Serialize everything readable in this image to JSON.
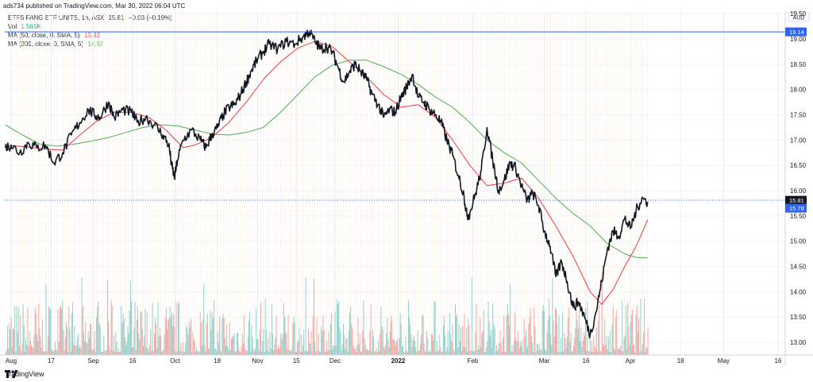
{
  "header": {
    "publish_line": "ads734 published on TradingView.com, Mar 30, 2022 06:04 UTC"
  },
  "legend": {
    "symbol": "ETFS FANG ETF UNITS, 1h, ASX",
    "last": "15.81",
    "change": "−0.03 (−0.19%)",
    "vol_label": "Vol",
    "vol_value": "1.565K",
    "ma50_label": "MA (50, close, 0, SMA, 5)",
    "ma50_value": "15.42",
    "ma200_label": "MA (200, close, 0, SMA, 5)",
    "ma200_value": "14.67"
  },
  "footer": {
    "brand": "TradingView"
  },
  "colors": {
    "price_line": "#131722",
    "ma50": "#f23645",
    "ma200": "#4caf50",
    "level_line": "#2962ff",
    "volume_up": "#26a69a",
    "volume_down": "#ef5350"
  },
  "chart_data": {
    "type": "line",
    "currency": "AUD",
    "ylim": [
      12.75,
      19.55
    ],
    "y_ticks": [
      "19.50",
      "19.00",
      "18.50",
      "18.00",
      "17.50",
      "17.00",
      "16.50",
      "16.00",
      "15.50",
      "15.00",
      "14.50",
      "14.00",
      "13.50",
      "13.00"
    ],
    "x_ticks": [
      {
        "label": "Aug",
        "t": 0.0
      },
      {
        "label": "17",
        "t": 14.0
      },
      {
        "label": "Sep",
        "t": 28.7
      },
      {
        "label": "16",
        "t": 42.4
      },
      {
        "label": "Oct",
        "t": 57.2
      },
      {
        "label": "18",
        "t": 71.9
      },
      {
        "label": "Nov",
        "t": 86.0
      },
      {
        "label": "15",
        "t": 99.5
      },
      {
        "label": "Dec",
        "t": 113.0
      },
      {
        "label": "2022",
        "t": 135.0
      },
      {
        "label": "Feb",
        "t": 161.0
      },
      {
        "label": "Mar",
        "t": 186.0
      },
      {
        "label": "16",
        "t": 200.5
      },
      {
        "label": "Apr",
        "t": 216.0
      },
      {
        "label": "18",
        "t": 233.5
      },
      {
        "label": "May",
        "t": 248.5
      },
      {
        "label": "16",
        "t": 267.5
      }
    ],
    "t_range": [
      -2.2,
      270
    ],
    "horizontal_levels": [
      {
        "value": 19.14,
        "label": "19.14",
        "style": "solid"
      },
      {
        "value": 15.81,
        "label": "15.81",
        "style": "dotted",
        "tag_color": "#131722"
      },
      {
        "value": 15.78,
        "label": "15.78",
        "style": "none",
        "tag_color": "#2962ff"
      }
    ],
    "series": [
      {
        "key": "price",
        "points": [
          [
            -2,
            16.85
          ],
          [
            0,
            16.9
          ],
          [
            3,
            16.75
          ],
          [
            6,
            16.95
          ],
          [
            9,
            16.85
          ],
          [
            12,
            16.9
          ],
          [
            15,
            16.55
          ],
          [
            18,
            16.75
          ],
          [
            21,
            17.1
          ],
          [
            24,
            17.35
          ],
          [
            27,
            17.6
          ],
          [
            29,
            17.5
          ],
          [
            31,
            17.45
          ],
          [
            34,
            17.75
          ],
          [
            36,
            17.45
          ],
          [
            39,
            17.6
          ],
          [
            42,
            17.55
          ],
          [
            44,
            17.35
          ],
          [
            47,
            17.45
          ],
          [
            50,
            17.3
          ],
          [
            53,
            17.1
          ],
          [
            55,
            16.9
          ],
          [
            56,
            16.5
          ],
          [
            57,
            16.25
          ],
          [
            58,
            16.6
          ],
          [
            60,
            17.0
          ],
          [
            63,
            17.2
          ],
          [
            66,
            17.0
          ],
          [
            68,
            16.85
          ],
          [
            70,
            17.1
          ],
          [
            72,
            17.25
          ],
          [
            74,
            17.5
          ],
          [
            76,
            17.65
          ],
          [
            78,
            17.7
          ],
          [
            80,
            17.9
          ],
          [
            82,
            18.15
          ],
          [
            84,
            18.4
          ],
          [
            86,
            18.6
          ],
          [
            88,
            18.75
          ],
          [
            90,
            18.9
          ],
          [
            93,
            18.8
          ],
          [
            96,
            18.95
          ],
          [
            99,
            18.9
          ],
          [
            102,
            19.05
          ],
          [
            104,
            19.15
          ],
          [
            106,
            18.95
          ],
          [
            108,
            18.8
          ],
          [
            110,
            18.85
          ],
          [
            112,
            18.75
          ],
          [
            114,
            18.45
          ],
          [
            116,
            18.15
          ],
          [
            118,
            18.35
          ],
          [
            120,
            18.5
          ],
          [
            122,
            18.35
          ],
          [
            124,
            18.2
          ],
          [
            126,
            17.9
          ],
          [
            128,
            17.7
          ],
          [
            130,
            17.45
          ],
          [
            132,
            17.6
          ],
          [
            134,
            17.55
          ],
          [
            136,
            17.85
          ],
          [
            138,
            18.05
          ],
          [
            140,
            18.3
          ],
          [
            142,
            17.85
          ],
          [
            144,
            17.75
          ],
          [
            146,
            17.6
          ],
          [
            148,
            17.5
          ],
          [
            150,
            17.35
          ],
          [
            152,
            17.0
          ],
          [
            154,
            16.7
          ],
          [
            156,
            16.3
          ],
          [
            158,
            15.9
          ],
          [
            159,
            15.5
          ],
          [
            160,
            15.55
          ],
          [
            162,
            15.95
          ],
          [
            164,
            16.4
          ],
          [
            166,
            17.25
          ],
          [
            168,
            16.6
          ],
          [
            170,
            16.0
          ],
          [
            172,
            16.2
          ],
          [
            174,
            16.55
          ],
          [
            176,
            16.45
          ],
          [
            178,
            16.1
          ],
          [
            180,
            15.8
          ],
          [
            182,
            15.95
          ],
          [
            184,
            15.7
          ],
          [
            186,
            15.2
          ],
          [
            188,
            14.9
          ],
          [
            190,
            14.3
          ],
          [
            192,
            14.6
          ],
          [
            194,
            14.2
          ],
          [
            196,
            13.7
          ],
          [
            198,
            13.8
          ],
          [
            200,
            13.5
          ],
          [
            202,
            13.15
          ],
          [
            204,
            13.6
          ],
          [
            206,
            14.2
          ],
          [
            208,
            14.85
          ],
          [
            210,
            15.2
          ],
          [
            212,
            15.1
          ],
          [
            214,
            15.45
          ],
          [
            216,
            15.25
          ],
          [
            218,
            15.6
          ],
          [
            220,
            15.85
          ],
          [
            222,
            15.78
          ]
        ]
      },
      {
        "key": "ma50",
        "points": [
          [
            -2,
            16.9
          ],
          [
            5,
            16.87
          ],
          [
            12,
            16.82
          ],
          [
            18,
            16.8
          ],
          [
            24,
            17.1
          ],
          [
            30,
            17.38
          ],
          [
            36,
            17.55
          ],
          [
            42,
            17.55
          ],
          [
            48,
            17.45
          ],
          [
            54,
            17.2
          ],
          [
            60,
            16.85
          ],
          [
            64,
            16.9
          ],
          [
            70,
            17.05
          ],
          [
            76,
            17.35
          ],
          [
            82,
            17.75
          ],
          [
            88,
            18.2
          ],
          [
            94,
            18.55
          ],
          [
            100,
            18.82
          ],
          [
            106,
            18.95
          ],
          [
            112,
            18.85
          ],
          [
            118,
            18.55
          ],
          [
            124,
            18.25
          ],
          [
            130,
            17.9
          ],
          [
            136,
            17.65
          ],
          [
            142,
            17.7
          ],
          [
            148,
            17.45
          ],
          [
            154,
            17.0
          ],
          [
            160,
            16.5
          ],
          [
            166,
            16.1
          ],
          [
            172,
            16.15
          ],
          [
            178,
            16.25
          ],
          [
            184,
            15.85
          ],
          [
            190,
            15.3
          ],
          [
            196,
            14.7
          ],
          [
            202,
            14.0
          ],
          [
            206,
            13.75
          ],
          [
            210,
            14.05
          ],
          [
            214,
            14.5
          ],
          [
            218,
            14.9
          ],
          [
            222,
            15.42
          ]
        ]
      },
      {
        "key": "ma200",
        "points": [
          [
            -2,
            17.3
          ],
          [
            4,
            17.1
          ],
          [
            10,
            16.92
          ],
          [
            16,
            16.88
          ],
          [
            22,
            16.92
          ],
          [
            28,
            16.98
          ],
          [
            34,
            17.05
          ],
          [
            40,
            17.15
          ],
          [
            46,
            17.25
          ],
          [
            52,
            17.3
          ],
          [
            58,
            17.28
          ],
          [
            64,
            17.2
          ],
          [
            70,
            17.12
          ],
          [
            76,
            17.1
          ],
          [
            82,
            17.15
          ],
          [
            88,
            17.25
          ],
          [
            94,
            17.55
          ],
          [
            100,
            17.9
          ],
          [
            106,
            18.25
          ],
          [
            112,
            18.48
          ],
          [
            118,
            18.58
          ],
          [
            124,
            18.58
          ],
          [
            130,
            18.45
          ],
          [
            136,
            18.3
          ],
          [
            142,
            18.1
          ],
          [
            148,
            17.85
          ],
          [
            154,
            17.65
          ],
          [
            160,
            17.35
          ],
          [
            166,
            17.0
          ],
          [
            172,
            16.75
          ],
          [
            178,
            16.55
          ],
          [
            184,
            16.2
          ],
          [
            190,
            15.85
          ],
          [
            196,
            15.55
          ],
          [
            202,
            15.3
          ],
          [
            208,
            14.95
          ],
          [
            214,
            14.75
          ],
          [
            218,
            14.68
          ],
          [
            222,
            14.67
          ]
        ]
      }
    ]
  }
}
